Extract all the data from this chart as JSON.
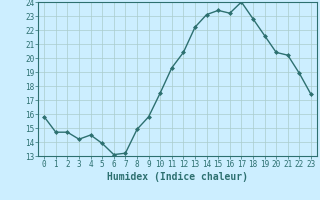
{
  "x": [
    0,
    1,
    2,
    3,
    4,
    5,
    6,
    7,
    8,
    9,
    10,
    11,
    12,
    13,
    14,
    15,
    16,
    17,
    18,
    19,
    20,
    21,
    22,
    23
  ],
  "y": [
    15.8,
    14.7,
    14.7,
    14.2,
    14.5,
    13.9,
    13.1,
    13.2,
    14.9,
    15.8,
    17.5,
    19.3,
    20.4,
    22.2,
    23.1,
    23.4,
    23.2,
    24.0,
    22.8,
    21.6,
    20.4,
    20.2,
    18.9,
    17.4
  ],
  "line_color": "#2d7070",
  "marker": "D",
  "marker_size": 2.0,
  "bg_color": "#cceeff",
  "grid_color": "#aacccc",
  "xlabel": "Humidex (Indice chaleur)",
  "ylim": [
    13,
    24
  ],
  "xlim_min": -0.5,
  "xlim_max": 23.5,
  "yticks": [
    13,
    14,
    15,
    16,
    17,
    18,
    19,
    20,
    21,
    22,
    23,
    24
  ],
  "xticks": [
    0,
    1,
    2,
    3,
    4,
    5,
    6,
    7,
    8,
    9,
    10,
    11,
    12,
    13,
    14,
    15,
    16,
    17,
    18,
    19,
    20,
    21,
    22,
    23
  ],
  "tick_color": "#2d7070",
  "font_color": "#2d7070",
  "axis_color": "#2d7070",
  "xlabel_fontsize": 7.0,
  "tick_labelsize": 5.5,
  "linewidth": 1.0
}
